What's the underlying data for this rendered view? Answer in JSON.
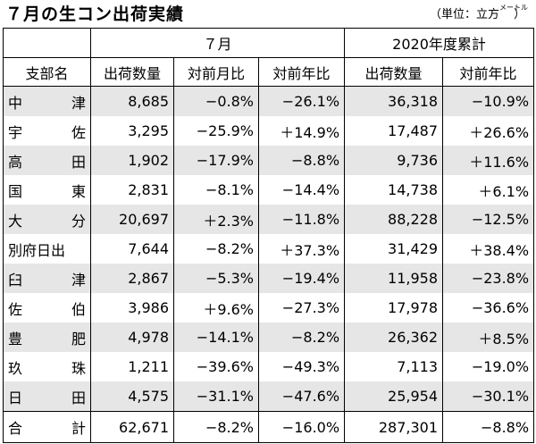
{
  "title": "７月の生コン出荷実績",
  "unit": {
    "open": "（単位：立方",
    "meter": "メートル",
    "close": "）"
  },
  "headers": {
    "period_july": "７月",
    "period_cumulative": "2020年度累計",
    "region": "支部名",
    "shipments": "出荷数量",
    "mom": "対前月比",
    "yoy": "対前年比",
    "cum_shipments": "出荷数量",
    "cum_yoy": "対前年比"
  },
  "rows": [
    {
      "name": [
        "中",
        "津"
      ],
      "qty": "8,685",
      "mom": "−0.8%",
      "yoy": "−26.1%",
      "cum": "36,318",
      "cum_yoy": "−10.9%"
    },
    {
      "name": [
        "宇",
        "佐"
      ],
      "qty": "3,295",
      "mom": "−25.9%",
      "yoy": "＋14.9%",
      "cum": "17,487",
      "cum_yoy": "＋26.6%"
    },
    {
      "name": [
        "高",
        "田"
      ],
      "qty": "1,902",
      "mom": "−17.9%",
      "yoy": "−8.8%",
      "cum": "9,736",
      "cum_yoy": "＋11.6%"
    },
    {
      "name": [
        "国",
        "東"
      ],
      "qty": "2,831",
      "mom": "−8.1%",
      "yoy": "−14.4%",
      "cum": "14,738",
      "cum_yoy": "＋6.1%"
    },
    {
      "name": [
        "大",
        "分"
      ],
      "qty": "20,697",
      "mom": "＋2.3%",
      "yoy": "−11.8%",
      "cum": "88,228",
      "cum_yoy": "−12.5%"
    },
    {
      "name": [
        "別府日出"
      ],
      "qty": "7,644",
      "mom": "−8.2%",
      "yoy": "＋37.3%",
      "cum": "31,429",
      "cum_yoy": "＋38.4%"
    },
    {
      "name": [
        "臼",
        "津"
      ],
      "qty": "2,867",
      "mom": "−5.3%",
      "yoy": "−19.4%",
      "cum": "11,958",
      "cum_yoy": "−23.8%"
    },
    {
      "name": [
        "佐",
        "伯"
      ],
      "qty": "3,986",
      "mom": "＋9.6%",
      "yoy": "−27.3%",
      "cum": "17,978",
      "cum_yoy": "−36.6%"
    },
    {
      "name": [
        "豊",
        "肥"
      ],
      "qty": "4,978",
      "mom": "−14.1%",
      "yoy": "−8.2%",
      "cum": "26,362",
      "cum_yoy": "＋8.5%"
    },
    {
      "name": [
        "玖",
        "珠"
      ],
      "qty": "1,211",
      "mom": "−39.6%",
      "yoy": "−49.3%",
      "cum": "7,113",
      "cum_yoy": "−19.0%"
    },
    {
      "name": [
        "日",
        "田"
      ],
      "qty": "4,575",
      "mom": "−31.1%",
      "yoy": "−47.6%",
      "cum": "25,954",
      "cum_yoy": "−30.1%"
    }
  ],
  "total": {
    "name": [
      "合",
      "計"
    ],
    "qty": "62,671",
    "mom": "−8.2%",
    "yoy": "−16.0%",
    "cum": "287,301",
    "cum_yoy": "−8.8%"
  },
  "colors": {
    "shade": "#e6e6e6",
    "line": "#000000"
  }
}
